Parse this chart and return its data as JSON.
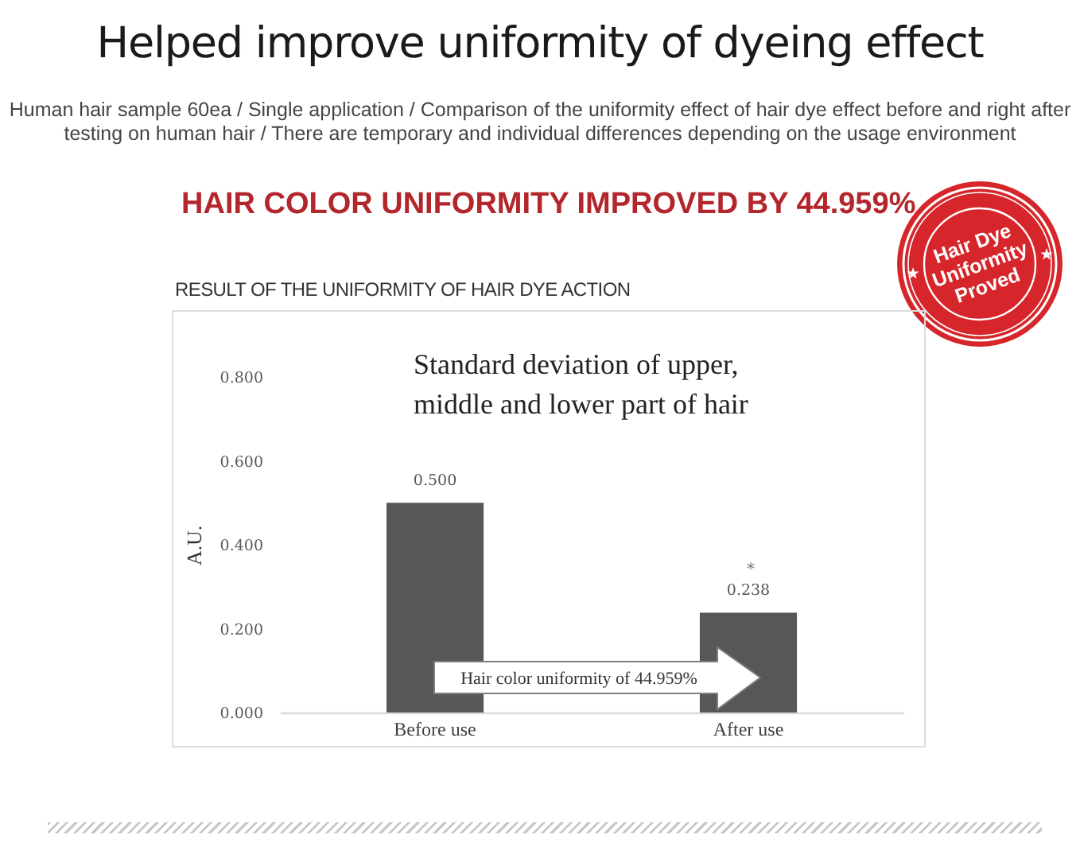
{
  "chart_data": {
    "type": "bar",
    "title": "Helped improve uniformity of dyeing effect",
    "subtitle": "Human hair sample 60ea / Single application / Comparison of the uniformity effect of hair dye effect before and right after testing on human hair / There are temporary and individual differences depending on the usage environment",
    "ylabel": "A.U.",
    "categories": [
      "Before use",
      "After use"
    ],
    "values": [
      0.5,
      0.238
    ],
    "value_labels": [
      "0.500",
      "0.238"
    ],
    "color": "#575757",
    "ylim": [
      0,
      0.8
    ],
    "yticks": [
      {
        "value": 0,
        "label": "0.000"
      },
      {
        "value": 0.2,
        "label": "0.200"
      },
      {
        "value": 0.4,
        "label": "0.400"
      },
      {
        "value": 0.6,
        "label": "0.600"
      },
      {
        "value": 0.8,
        "label": "0.800"
      }
    ],
    "annotations": [
      "HAIR COLOR UNIFORMITY IMPROVED BY 44.959%",
      "RESULT OF THE UNIFORMITY OF HAIR DYE ACTION",
      "Standard deviation of upper,\nmiddle and lower part of hair",
      "Hair color uniformity of 44.959%",
      "*",
      "Hair Dye\nUniformity\nProved"
    ]
  }
}
